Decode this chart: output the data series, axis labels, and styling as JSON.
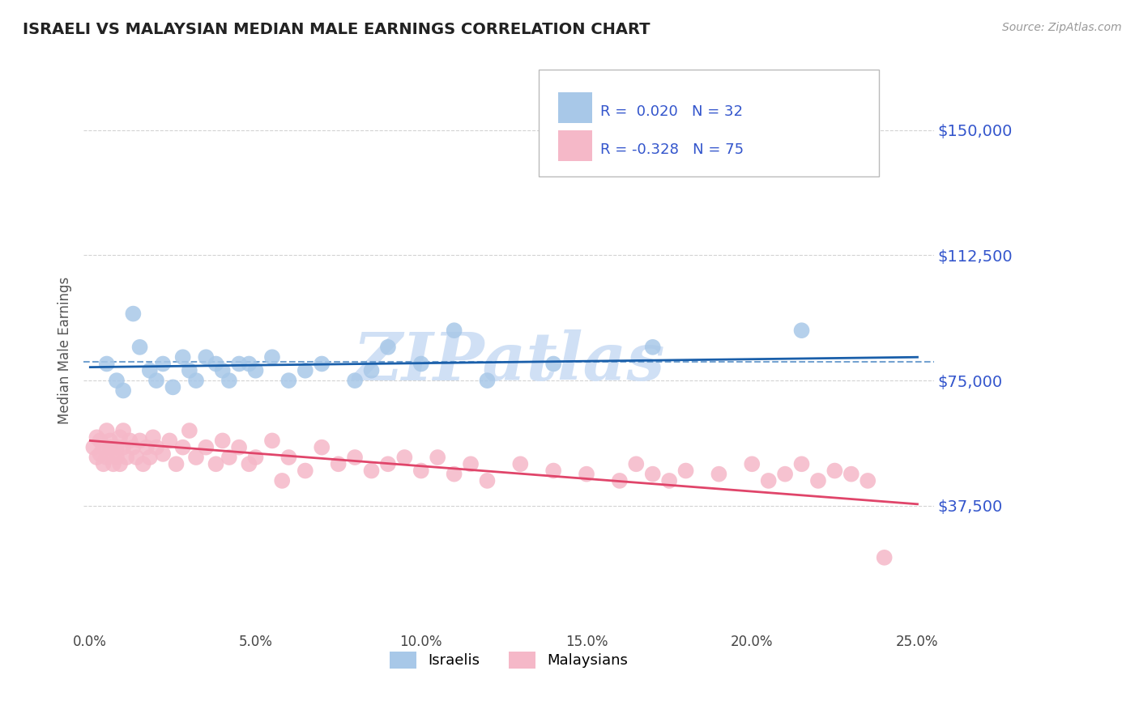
{
  "title": "ISRAELI VS MALAYSIAN MEDIAN MALE EARNINGS CORRELATION CHART",
  "source_text": "Source: ZipAtlas.com",
  "ylabel": "Median Male Earnings",
  "xlim": [
    -0.002,
    0.255
  ],
  "ylim": [
    0,
    168000
  ],
  "yticks": [
    37500,
    75000,
    112500,
    150000
  ],
  "ytick_labels": [
    "$37,500",
    "$75,000",
    "$112,500",
    "$150,000"
  ],
  "xtick_labels": [
    "0.0%",
    "5.0%",
    "10.0%",
    "15.0%",
    "20.0%",
    "25.0%"
  ],
  "xticks": [
    0.0,
    0.05,
    0.1,
    0.15,
    0.2,
    0.25
  ],
  "israeli_color": "#a8c8e8",
  "malaysian_color": "#f5b8c8",
  "israeli_line_color": "#1a5faa",
  "malaysian_line_color": "#e0456a",
  "israeli_dashed_color": "#6699cc",
  "R_israeli": 0.02,
  "N_israeli": 32,
  "R_malaysian": -0.328,
  "N_malaysian": 75,
  "bg_color": "#ffffff",
  "grid_color": "#c8c8c8",
  "title_color": "#222222",
  "ytick_color": "#3355cc",
  "watermark_color": "#d0e0f5",
  "legend_label_israeli": "Israelis",
  "legend_label_malaysian": "Malaysians",
  "israelis_x": [
    0.005,
    0.008,
    0.01,
    0.013,
    0.015,
    0.018,
    0.02,
    0.022,
    0.025,
    0.028,
    0.03,
    0.032,
    0.035,
    0.038,
    0.04,
    0.042,
    0.045,
    0.048,
    0.05,
    0.055,
    0.06,
    0.065,
    0.07,
    0.08,
    0.085,
    0.09,
    0.1,
    0.11,
    0.12,
    0.14,
    0.17,
    0.215
  ],
  "israelis_y": [
    80000,
    75000,
    72000,
    95000,
    85000,
    78000,
    75000,
    80000,
    73000,
    82000,
    78000,
    75000,
    82000,
    80000,
    78000,
    75000,
    80000,
    80000,
    78000,
    82000,
    75000,
    78000,
    80000,
    75000,
    78000,
    85000,
    80000,
    90000,
    75000,
    80000,
    85000,
    90000
  ],
  "malaysians_x": [
    0.001,
    0.002,
    0.002,
    0.003,
    0.003,
    0.004,
    0.004,
    0.005,
    0.005,
    0.006,
    0.006,
    0.007,
    0.007,
    0.008,
    0.008,
    0.009,
    0.009,
    0.01,
    0.01,
    0.011,
    0.012,
    0.013,
    0.014,
    0.015,
    0.016,
    0.017,
    0.018,
    0.019,
    0.02,
    0.022,
    0.024,
    0.026,
    0.028,
    0.03,
    0.032,
    0.035,
    0.038,
    0.04,
    0.042,
    0.045,
    0.048,
    0.05,
    0.055,
    0.058,
    0.06,
    0.065,
    0.07,
    0.075,
    0.08,
    0.085,
    0.09,
    0.095,
    0.1,
    0.105,
    0.11,
    0.115,
    0.12,
    0.13,
    0.14,
    0.15,
    0.16,
    0.165,
    0.17,
    0.175,
    0.18,
    0.19,
    0.2,
    0.205,
    0.21,
    0.215,
    0.22,
    0.225,
    0.23,
    0.235,
    0.24
  ],
  "malaysians_y": [
    55000,
    52000,
    58000,
    53000,
    57000,
    50000,
    55000,
    60000,
    52000,
    55000,
    57000,
    50000,
    53000,
    55000,
    52000,
    58000,
    50000,
    60000,
    55000,
    52000,
    57000,
    55000,
    52000,
    57000,
    50000,
    55000,
    52000,
    58000,
    55000,
    53000,
    57000,
    50000,
    55000,
    60000,
    52000,
    55000,
    50000,
    57000,
    52000,
    55000,
    50000,
    52000,
    57000,
    45000,
    52000,
    48000,
    55000,
    50000,
    52000,
    48000,
    50000,
    52000,
    48000,
    52000,
    47000,
    50000,
    45000,
    50000,
    48000,
    47000,
    45000,
    50000,
    47000,
    45000,
    48000,
    47000,
    50000,
    45000,
    47000,
    50000,
    45000,
    48000,
    47000,
    45000,
    22000
  ],
  "trend_israeli_x0": 0.0,
  "trend_israeli_y0": 79000,
  "trend_israeli_x1": 0.25,
  "trend_israeli_y1": 82000,
  "trend_malaysian_x0": 0.0,
  "trend_malaysian_y0": 57000,
  "trend_malaysian_x1": 0.25,
  "trend_malaysian_y1": 38000,
  "dashed_line_y": 80500
}
